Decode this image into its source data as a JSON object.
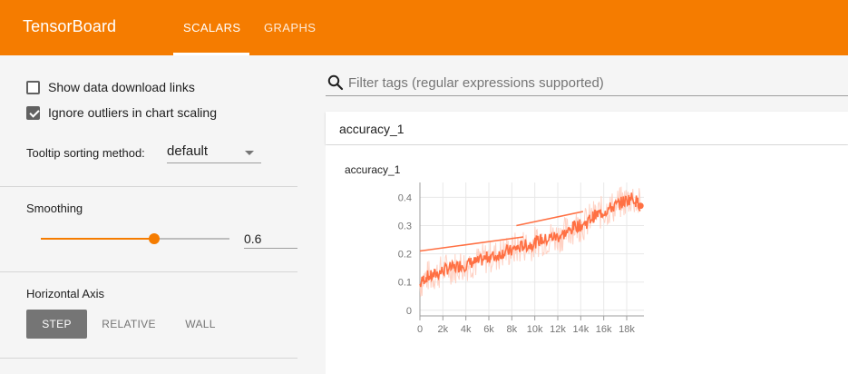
{
  "app": {
    "title": "TensorBoard",
    "tabs": [
      {
        "label": "SCALARS",
        "active": true
      },
      {
        "label": "GRAPHS",
        "active": false
      }
    ],
    "accent_color": "#f57c00"
  },
  "sidebar": {
    "show_download_links": {
      "label": "Show data download links",
      "checked": false
    },
    "ignore_outliers": {
      "label": "Ignore outliers in chart scaling",
      "checked": true
    },
    "tooltip_sorting": {
      "label": "Tooltip sorting method:",
      "value": "default"
    },
    "smoothing": {
      "title": "Smoothing",
      "value": "0.6",
      "fraction": 0.6
    },
    "horizontal_axis": {
      "title": "Horizontal Axis",
      "options": [
        {
          "label": "STEP",
          "active": true
        },
        {
          "label": "RELATIVE",
          "active": false
        },
        {
          "label": "WALL",
          "active": false
        }
      ]
    }
  },
  "main": {
    "filter": {
      "icon": "search-icon",
      "placeholder": "Filter tags (regular expressions supported)"
    },
    "card": {
      "header": "accuracy_1"
    }
  },
  "chart_data": {
    "type": "line",
    "title": "accuracy_1",
    "xlabel": "",
    "ylabel": "",
    "xlim": [
      0,
      19500
    ],
    "ylim": [
      -0.02,
      0.44
    ],
    "x_tick_labels": [
      "0",
      "2k",
      "4k",
      "6k",
      "8k",
      "10k",
      "12k",
      "14k",
      "16k",
      "18k"
    ],
    "x_tick_values": [
      0,
      2000,
      4000,
      6000,
      8000,
      10000,
      12000,
      14000,
      16000,
      18000
    ],
    "y_tick_labels": [
      "0",
      "0.1",
      "0.2",
      "0.3",
      "0.4"
    ],
    "y_tick_values": [
      0,
      0.1,
      0.2,
      0.3,
      0.4
    ],
    "grid": true,
    "colors": {
      "smoothed": "#ff7043",
      "raw": "#ffccbc"
    },
    "series": [
      {
        "x": [
          0,
          300,
          600,
          1000,
          1500,
          2000,
          2500,
          3000,
          3500,
          4000,
          4500,
          5000,
          5500,
          6000,
          6500,
          7000,
          7500,
          8000,
          8300,
          8600,
          9000,
          9500,
          10000,
          10500,
          11000,
          11500,
          12000,
          12500,
          13000,
          13500,
          14000,
          14500,
          15000,
          15500,
          16000,
          16500,
          17000,
          17500,
          18000,
          18500,
          19000,
          19200
        ],
        "y": [
          0.09,
          0.11,
          0.12,
          0.12,
          0.13,
          0.14,
          0.15,
          0.15,
          0.16,
          0.16,
          0.17,
          0.17,
          0.18,
          0.19,
          0.19,
          0.2,
          0.21,
          0.21,
          0.22,
          0.22,
          0.23,
          0.23,
          0.24,
          0.25,
          0.25,
          0.26,
          0.26,
          0.27,
          0.28,
          0.3,
          0.3,
          0.31,
          0.33,
          0.34,
          0.35,
          0.36,
          0.37,
          0.38,
          0.39,
          0.4,
          0.38,
          0.37
        ]
      },
      {
        "x": [
          0,
          9000
        ],
        "y": [
          0.21,
          0.26
        ]
      },
      {
        "x": [
          8400,
          14200
        ],
        "y": [
          0.3,
          0.35
        ]
      }
    ]
  }
}
